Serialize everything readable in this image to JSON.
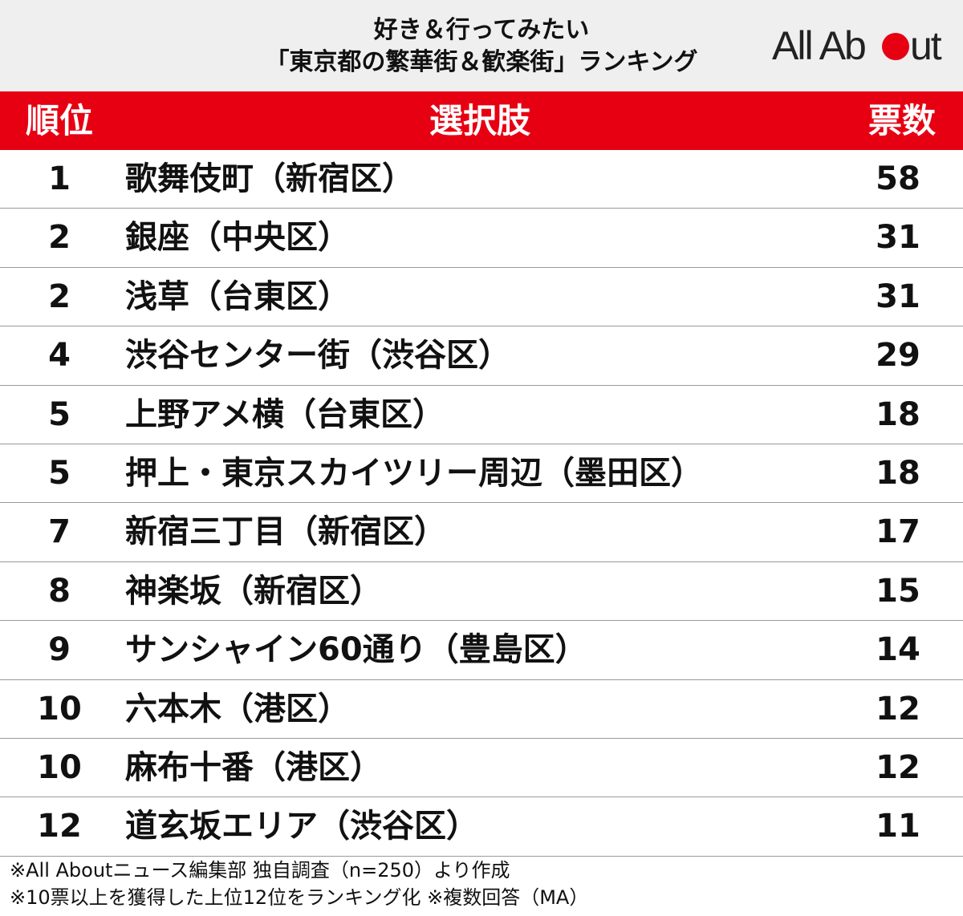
{
  "header": {
    "title_line1": "好き＆行ってみたい",
    "title_line2": "「東京都の繁華街＆歓楽街」ランキング",
    "logo_text_left": "All Ab",
    "logo_text_right": "ut",
    "brand_red": "#e60012"
  },
  "chart_data": {
    "type": "table",
    "columns": [
      "順位",
      "選択肢",
      "票数"
    ],
    "rows": [
      {
        "rank": "1",
        "name": "歌舞伎町（新宿区）",
        "votes": "58"
      },
      {
        "rank": "2",
        "name": "銀座（中央区）",
        "votes": "31"
      },
      {
        "rank": "2",
        "name": "浅草（台東区）",
        "votes": "31"
      },
      {
        "rank": "4",
        "name": "渋谷センター街（渋谷区）",
        "votes": "29"
      },
      {
        "rank": "5",
        "name": "上野アメ横（台東区）",
        "votes": "18"
      },
      {
        "rank": "5",
        "name": "押上・東京スカイツリー周辺（墨田区）",
        "votes": "18"
      },
      {
        "rank": "7",
        "name": "新宿三丁目（新宿区）",
        "votes": "17"
      },
      {
        "rank": "8",
        "name": "神楽坂（新宿区）",
        "votes": "15"
      },
      {
        "rank": "9",
        "name": "サンシャイン60通り（豊島区）",
        "votes": "14"
      },
      {
        "rank": "10",
        "name": "六本木（港区）",
        "votes": "12"
      },
      {
        "rank": "10",
        "name": "麻布十番（港区）",
        "votes": "12"
      },
      {
        "rank": "12",
        "name": "道玄坂エリア（渋谷区）",
        "votes": "11"
      }
    ]
  },
  "footnotes": [
    "※All Aboutニュース編集部 独自調査（n=250）より作成",
    "※10票以上を獲得した上位12位をランキング化 ※複数回答（MA）"
  ]
}
